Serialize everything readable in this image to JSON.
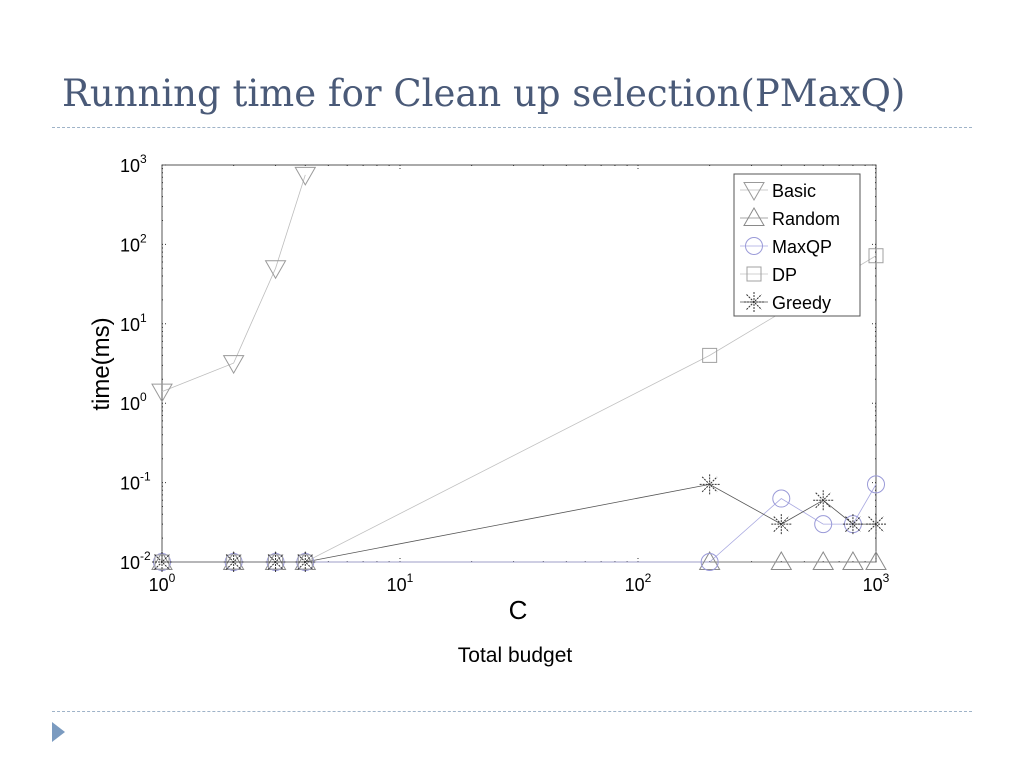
{
  "slide": {
    "title": "Running time for Clean up selection(PMaxQ)"
  },
  "chart_data": {
    "type": "line",
    "title": "",
    "xlabel": "C",
    "xlabel_sub": "Total budget",
    "ylabel": "time(ms)",
    "xscale": "log",
    "yscale": "log",
    "xlim": [
      1,
      1000
    ],
    "ylim": [
      0.01,
      1000
    ],
    "x_ticks": [
      {
        "value": 1,
        "base": "10",
        "exp": "0"
      },
      {
        "value": 10,
        "base": "10",
        "exp": "1"
      },
      {
        "value": 100,
        "base": "10",
        "exp": "2"
      },
      {
        "value": 1000,
        "base": "10",
        "exp": "3"
      }
    ],
    "y_ticks": [
      {
        "value": 0.01,
        "base": "10",
        "exp": "-2"
      },
      {
        "value": 0.1,
        "base": "10",
        "exp": "-1"
      },
      {
        "value": 1,
        "base": "10",
        "exp": "0"
      },
      {
        "value": 10,
        "base": "10",
        "exp": "1"
      },
      {
        "value": 100,
        "base": "10",
        "exp": "2"
      },
      {
        "value": 1000,
        "base": "10",
        "exp": "3"
      }
    ],
    "grid": false,
    "legend_position": "top-right",
    "series": [
      {
        "name": "Basic",
        "marker": "triangle-down",
        "color": "#9a9a9a",
        "line_color": "#bdbdbd",
        "x": [
          1,
          2,
          3,
          4
        ],
        "y": [
          1.4,
          3.2,
          50,
          750
        ]
      },
      {
        "name": "Random",
        "marker": "triangle-up",
        "color": "#8a8a8a",
        "line_color": "#8a8a8a",
        "x": [
          1,
          2,
          3,
          4,
          200,
          400,
          600,
          800,
          1000
        ],
        "y": [
          0.01,
          0.01,
          0.01,
          0.01,
          0.01,
          0.01,
          0.01,
          0.01,
          0.01
        ]
      },
      {
        "name": "MaxQP",
        "marker": "circle",
        "color": "#9a9ad8",
        "line_color": "#a8a8e0",
        "x": [
          1,
          2,
          3,
          4,
          200,
          400,
          600,
          800,
          1000
        ],
        "y": [
          0.01,
          0.01,
          0.01,
          0.01,
          0.01,
          0.063,
          0.03,
          0.03,
          0.095
        ]
      },
      {
        "name": "DP",
        "marker": "square",
        "color": "#a0a0a0",
        "line_color": "#c0c0c0",
        "x": [
          1,
          2,
          3,
          4,
          200,
          1000
        ],
        "y": [
          0.01,
          0.01,
          0.01,
          0.01,
          4,
          72
        ]
      },
      {
        "name": "Greedy",
        "marker": "asterisk",
        "color": "#333333",
        "line_color": "#555555",
        "x": [
          1,
          2,
          3,
          4,
          200,
          400,
          600,
          800,
          1000
        ],
        "y": [
          0.01,
          0.01,
          0.01,
          0.01,
          0.095,
          0.03,
          0.06,
          0.03,
          0.03
        ]
      }
    ]
  }
}
